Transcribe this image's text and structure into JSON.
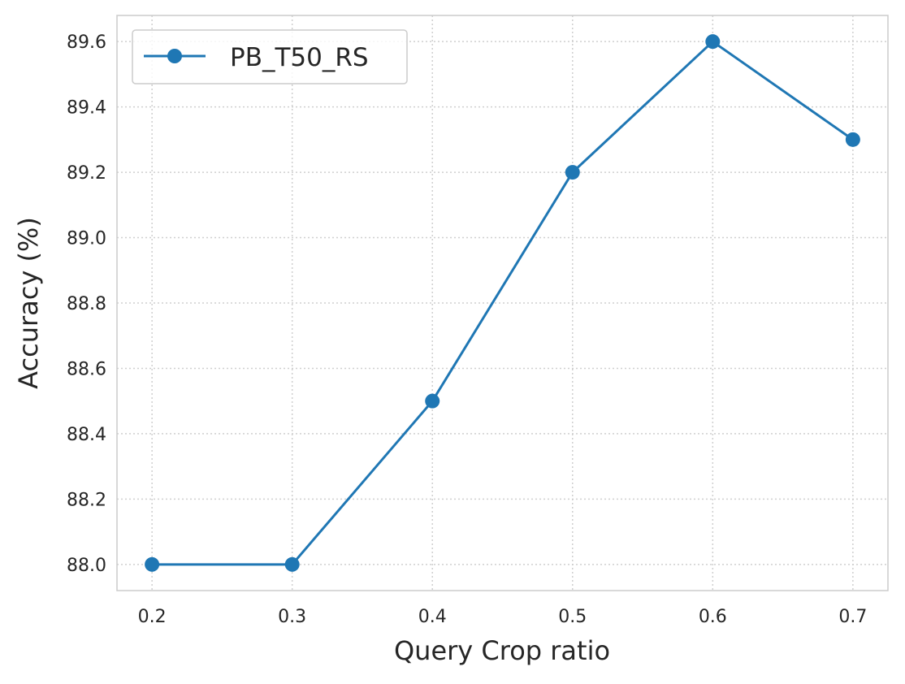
{
  "chart_data": {
    "type": "line",
    "title": "",
    "xlabel": "Query Crop ratio",
    "ylabel": "Accuracy (%)",
    "x": [
      0.2,
      0.3,
      0.4,
      0.5,
      0.6,
      0.7
    ],
    "x_tick_labels": [
      "0.2",
      "0.3",
      "0.4",
      "0.5",
      "0.6",
      "0.7"
    ],
    "y_ticks": [
      88.0,
      88.2,
      88.4,
      88.6,
      88.8,
      89.0,
      89.2,
      89.4,
      89.6
    ],
    "y_tick_labels": [
      "88.0",
      "88.2",
      "88.4",
      "88.6",
      "88.8",
      "89.0",
      "89.2",
      "89.4",
      "89.6"
    ],
    "xlim": [
      0.175,
      0.725
    ],
    "ylim": [
      87.92,
      89.68
    ],
    "grid": true,
    "legend_position": "top-left",
    "series": [
      {
        "name": "PB_T50_RS",
        "values": [
          88.0,
          88.0,
          88.5,
          89.2,
          89.6,
          89.3
        ],
        "color": "#1f77b4",
        "marker": "circle"
      }
    ]
  }
}
